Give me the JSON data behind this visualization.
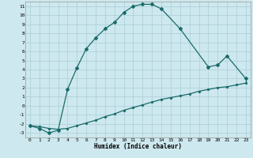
{
  "xlabel": "Humidex (Indice chaleur)",
  "background_color": "#cde8ee",
  "grid_color": "#aacdd6",
  "line_color": "#1a6b6b",
  "xlim": [
    -0.5,
    23.5
  ],
  "ylim": [
    -3.5,
    11.5
  ],
  "xticks": [
    0,
    1,
    2,
    3,
    4,
    5,
    6,
    7,
    8,
    9,
    10,
    11,
    12,
    13,
    14,
    15,
    16,
    17,
    18,
    19,
    20,
    21,
    22,
    23
  ],
  "yticks": [
    -3,
    -2,
    -1,
    0,
    1,
    2,
    3,
    4,
    5,
    6,
    7,
    8,
    9,
    10,
    11
  ],
  "upper_x": [
    0,
    1,
    2,
    3,
    4,
    5,
    6,
    7,
    8,
    9,
    10,
    11,
    12,
    13,
    14,
    16,
    19,
    20,
    21,
    23
  ],
  "upper_y": [
    -2.2,
    -2.5,
    -3.0,
    -2.7,
    1.8,
    4.2,
    6.3,
    7.5,
    8.5,
    9.2,
    10.3,
    11.0,
    11.2,
    11.2,
    10.7,
    8.5,
    4.3,
    4.5,
    5.5,
    3.0
  ],
  "lower_x": [
    0,
    1,
    2,
    3,
    4,
    5,
    6,
    7,
    8,
    9,
    10,
    11,
    12,
    13,
    14,
    15,
    16,
    17,
    18,
    19,
    20,
    21,
    22,
    23
  ],
  "lower_y": [
    -2.2,
    -2.3,
    -2.5,
    -2.6,
    -2.5,
    -2.2,
    -1.9,
    -1.6,
    -1.2,
    -0.9,
    -0.5,
    -0.2,
    0.1,
    0.4,
    0.7,
    0.9,
    1.1,
    1.3,
    1.6,
    1.8,
    2.0,
    2.1,
    2.3,
    2.5
  ]
}
